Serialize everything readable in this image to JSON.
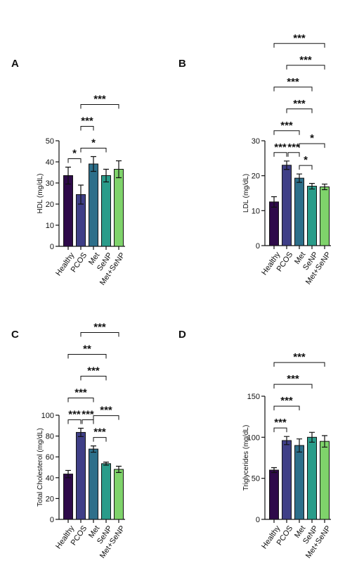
{
  "chart_data": [
    {
      "type": "bar",
      "panel": "A",
      "ylabel": "HDL (mg/dL)",
      "categories": [
        "Healthy",
        "PCOS",
        "Met",
        "SeNP",
        "Met+SeNP"
      ],
      "values": [
        33.5,
        24.5,
        39,
        33.5,
        36.5
      ],
      "errors": [
        4,
        4.5,
        3.5,
        3,
        4
      ],
      "colors": [
        "#2e0a4a",
        "#3f3f87",
        "#2d6f8a",
        "#2a9c8a",
        "#7fd36b"
      ],
      "ylim": [
        0,
        50
      ],
      "yticks": [
        0,
        10,
        20,
        30,
        40,
        50
      ],
      "annotations": [
        {
          "text": "*",
          "between": [
            "Healthy",
            "PCOS"
          ]
        },
        {
          "text": "*",
          "between": [
            "PCOS",
            "SeNP"
          ]
        },
        {
          "text": "***",
          "between": [
            "PCOS",
            "Met"
          ]
        },
        {
          "text": "***",
          "between": [
            "PCOS",
            "Met+SeNP"
          ]
        }
      ]
    },
    {
      "type": "bar",
      "panel": "B",
      "ylabel": "LDL (mg/dL)",
      "categories": [
        "Healthy",
        "PCOS",
        "Met",
        "SeNP",
        "Met+SeNP"
      ],
      "values": [
        12.5,
        23,
        19.3,
        17,
        16.8
      ],
      "errors": [
        1.5,
        1.2,
        1.2,
        0.8,
        0.8
      ],
      "colors": [
        "#2e0a4a",
        "#3f3f87",
        "#2d6f8a",
        "#2a9c8a",
        "#7fd36b"
      ],
      "ylim": [
        0,
        30
      ],
      "yticks": [
        0,
        10,
        20,
        30
      ],
      "annotations": [
        {
          "text": "***",
          "between": [
            "Healthy",
            "PCOS"
          ]
        },
        {
          "text": "*",
          "between": [
            "Met",
            "SeNP"
          ]
        },
        {
          "text": "***",
          "between": [
            "PCOS",
            "Met"
          ]
        },
        {
          "text": "*",
          "between": [
            "Met",
            "Met+SeNP"
          ]
        },
        {
          "text": "***",
          "between": [
            "Healthy",
            "Met"
          ]
        },
        {
          "text": "***",
          "between": [
            "PCOS",
            "SeNP"
          ]
        },
        {
          "text": "***",
          "between": [
            "Healthy",
            "SeNP"
          ]
        },
        {
          "text": "***",
          "between": [
            "PCOS",
            "Met+SeNP"
          ]
        },
        {
          "text": "***",
          "between": [
            "Healthy",
            "Met+SeNP"
          ]
        }
      ]
    },
    {
      "type": "bar",
      "panel": "C",
      "ylabel": "Total Cholesterol (mg/dL)",
      "categories": [
        "Healthy",
        "PCOS",
        "Met",
        "SeNP",
        "Met+SeNP"
      ],
      "values": [
        43.5,
        83.5,
        67.5,
        53.5,
        48
      ],
      "errors": [
        3.5,
        4,
        3,
        1.5,
        3
      ],
      "colors": [
        "#2e0a4a",
        "#3f3f87",
        "#2d6f8a",
        "#2a9c8a",
        "#7fd36b"
      ],
      "ylim": [
        0,
        100
      ],
      "yticks": [
        0,
        20,
        40,
        60,
        80,
        100
      ],
      "annotations": [
        {
          "text": "***",
          "between": [
            "Healthy",
            "PCOS"
          ]
        },
        {
          "text": "***",
          "between": [
            "Met",
            "SeNP"
          ]
        },
        {
          "text": "***",
          "between": [
            "PCOS",
            "Met"
          ]
        },
        {
          "text": "***",
          "between": [
            "Healthy",
            "Met"
          ]
        },
        {
          "text": "***",
          "between": [
            "Met",
            "Met+SeNP"
          ]
        },
        {
          "text": "***",
          "between": [
            "PCOS",
            "SeNP"
          ]
        },
        {
          "text": "**",
          "between": [
            "Healthy",
            "SeNP"
          ]
        },
        {
          "text": "***",
          "between": [
            "PCOS",
            "Met+SeNP"
          ]
        }
      ]
    },
    {
      "type": "bar",
      "panel": "D",
      "ylabel": "Triglycerides (mg/dL)",
      "categories": [
        "Healthy",
        "PCOS",
        "Met",
        "SeNP",
        "Met+SeNP"
      ],
      "values": [
        60,
        96,
        90,
        100,
        95
      ],
      "errors": [
        3,
        5,
        8,
        6,
        7
      ],
      "colors": [
        "#2e0a4a",
        "#3f3f87",
        "#2d6f8a",
        "#2a9c8a",
        "#7fd36b"
      ],
      "ylim": [
        0,
        150
      ],
      "yticks": [
        0,
        50,
        100,
        150
      ],
      "annotations": [
        {
          "text": "***",
          "between": [
            "Healthy",
            "PCOS"
          ]
        },
        {
          "text": "***",
          "between": [
            "Healthy",
            "Met"
          ]
        },
        {
          "text": "***",
          "between": [
            "Healthy",
            "SeNP"
          ]
        },
        {
          "text": "***",
          "between": [
            "Healthy",
            "Met+SeNP"
          ]
        }
      ]
    }
  ]
}
